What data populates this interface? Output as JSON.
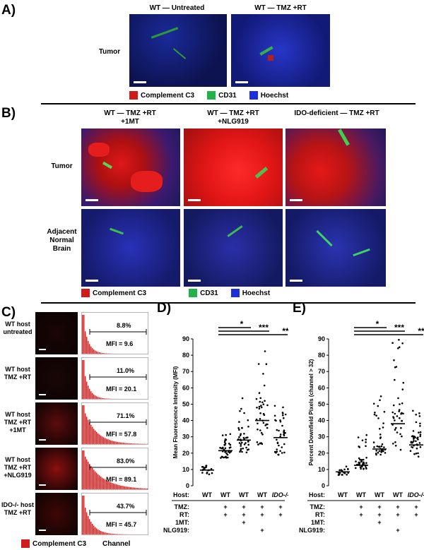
{
  "panelA": {
    "letter": "A)",
    "col1": "WT — Untreated",
    "col2": "WT — TMZ +RT",
    "row": "Tumor",
    "legend": [
      {
        "label": "Complement C3",
        "color": "#d11a1a"
      },
      {
        "label": "CD31",
        "color": "#1fb34a"
      },
      {
        "label": "Hoechst",
        "color": "#1a2fe0"
      }
    ]
  },
  "panelB": {
    "letter": "B)",
    "col1": "WT —  TMZ +RT\n+1MT",
    "col2": "WT —  TMZ +RT\n+NLG919",
    "col3": "IDO-deficient —  TMZ +RT",
    "row1": "Tumor",
    "row2": "Adjacent\nNormal\nBrain",
    "legend": [
      {
        "label": "Complement C3",
        "color": "#d11a1a"
      },
      {
        "label": "CD31",
        "color": "#1fb34a"
      },
      {
        "label": "Hoechst",
        "color": "#1a2fe0"
      }
    ]
  },
  "panelC": {
    "letter": "C)",
    "rows": [
      {
        "label": "WT host\nuntreated",
        "pct": "8.8%",
        "mfi": "MFI = 9.6"
      },
      {
        "label": "WT host\nTMZ +RT",
        "pct": "11.0%",
        "mfi": "MFI = 20.1"
      },
      {
        "label": "WT host\nTMZ +RT\n+1MT",
        "pct": "71.1%",
        "mfi": "MFI = 57.8"
      },
      {
        "label": "WT host\nTMZ +RT\n+NLG919",
        "pct": "83.0%",
        "mfi": "MFI = 89.1"
      },
      {
        "label": "IDO-/- host\nTMZ +RT",
        "pct": "43.7%",
        "mfi": "MFI = 45.7"
      }
    ],
    "legend_label": "Complement C3",
    "legend_color": "#d11a1a",
    "xaxis": "Channel"
  },
  "chart_data": [
    {
      "type": "scatter",
      "title": "D)",
      "ylabel": "Mean Fluorescence Intensity (MFI)",
      "ylim": [
        0,
        90
      ],
      "yticks": [
        0,
        10,
        20,
        30,
        40,
        50,
        60,
        70,
        80,
        90
      ],
      "categories": [
        "WT",
        "WT",
        "WT",
        "WT",
        "IDO-/-"
      ],
      "medians": [
        9.6,
        21.5,
        28,
        40,
        29.5
      ],
      "significance": [
        "*",
        "***",
        "**"
      ],
      "factors": {
        "Host:": [
          "WT",
          "WT",
          "WT",
          "WT",
          "IDO-/-"
        ],
        "TMZ:": [
          "",
          "+",
          "+",
          "+",
          "+"
        ],
        "RT:": [
          "",
          "+",
          "+",
          "+",
          "+"
        ],
        "1MT:": [
          "",
          "",
          "+",
          "",
          ""
        ],
        "NLG919:": [
          "",
          "",
          "",
          "+",
          ""
        ]
      }
    },
    {
      "type": "scatter",
      "title": "E)",
      "ylabel": "Percent Downfield Pixels (channel > 32)",
      "ylim": [
        0,
        90
      ],
      "yticks": [
        0,
        10,
        20,
        30,
        40,
        50,
        60,
        70,
        80,
        90
      ],
      "categories": [
        "WT",
        "WT",
        "WT",
        "WT",
        "IDO-/-"
      ],
      "medians": [
        8.5,
        12.5,
        22.5,
        38,
        25
      ],
      "significance": [
        "*",
        "***",
        "**"
      ],
      "factors": {
        "Host:": [
          "WT",
          "WT",
          "WT",
          "WT",
          "IDO-/-"
        ],
        "TMZ:": [
          "",
          "+",
          "+",
          "+",
          "+"
        ],
        "RT:": [
          "",
          "+",
          "+",
          "+",
          "+"
        ],
        "1MT:": [
          "",
          "",
          "+",
          "",
          ""
        ],
        "NLG919:": [
          "",
          "",
          "",
          "+",
          ""
        ]
      }
    }
  ]
}
